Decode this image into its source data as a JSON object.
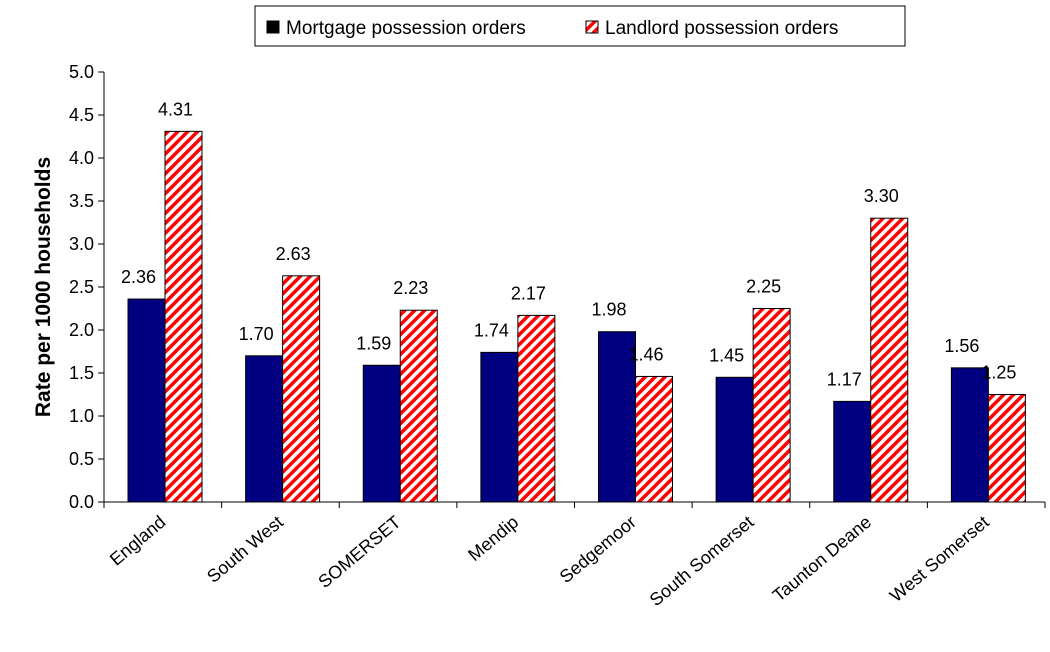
{
  "chart_data": {
    "type": "bar",
    "title": "",
    "xlabel": "",
    "ylabel": "Rate per 1000 households",
    "ylim": [
      0,
      5
    ],
    "yticks": [
      "0.0",
      "0.5",
      "1.0",
      "1.5",
      "2.0",
      "2.5",
      "3.0",
      "3.5",
      "4.0",
      "4.5",
      "5.0"
    ],
    "categories": [
      "England",
      "South West",
      "SOMERSET",
      "Mendip",
      "Sedgemoor",
      "South Somerset",
      "Taunton Deane",
      "West Somerset"
    ],
    "series": [
      {
        "name": "Mortgage possession orders",
        "values": [
          2.36,
          1.7,
          1.59,
          1.74,
          1.98,
          1.45,
          1.17,
          1.56
        ],
        "labels": [
          "2.36",
          "1.70",
          "1.59",
          "1.74",
          "1.98",
          "1.45",
          "1.17",
          "1.56"
        ],
        "color": "#000080",
        "pattern": "solid"
      },
      {
        "name": "Landlord possession orders",
        "values": [
          4.31,
          2.63,
          2.23,
          2.17,
          1.46,
          2.25,
          3.3,
          1.25
        ],
        "labels": [
          "4.31",
          "2.63",
          "2.23",
          "2.17",
          "1.46",
          "2.25",
          "3.30",
          "1.25"
        ],
        "color": "#ff0000",
        "pattern": "diagonal-stripes"
      }
    ],
    "grid": false,
    "legend_position": "top"
  }
}
